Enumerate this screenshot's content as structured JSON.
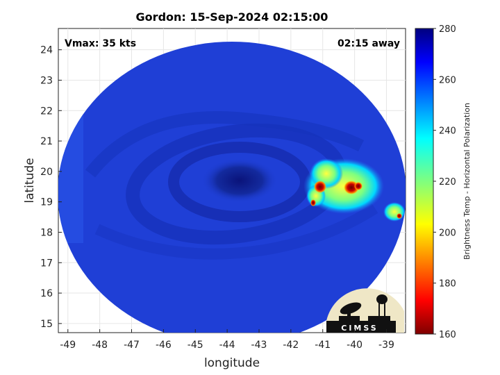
{
  "title": "Gordon: 15-Sep-2024 02:15:00",
  "vmax_label": "Vmax: 35 kts",
  "time_label": "02:15 away",
  "x_axis": {
    "label": "longitude",
    "range": [
      -49.3,
      -38.4
    ],
    "ticks": [
      -49,
      -48,
      -47,
      -46,
      -45,
      -44,
      -43,
      -42,
      -41,
      -40,
      -39
    ]
  },
  "y_axis": {
    "label": "latitude",
    "range": [
      14.7,
      24.7
    ],
    "ticks": [
      15,
      16,
      17,
      18,
      19,
      20,
      21,
      22,
      23,
      24
    ]
  },
  "colorbar": {
    "label": "Brightness Temp - Horizontal Polarization",
    "range": [
      160,
      280
    ],
    "ticks": [
      160,
      180,
      200,
      220,
      240,
      260,
      280
    ],
    "colormap": "jet"
  },
  "logo": {
    "text": "CIMSS"
  },
  "colors": {
    "background_swath": "#1f3fd6",
    "eye": "#0a1a8a",
    "cold_core": "#8a0000"
  }
}
